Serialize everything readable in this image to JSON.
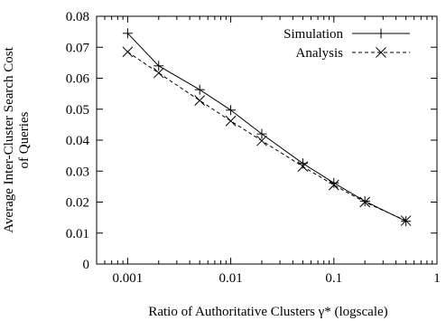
{
  "chart_data": {
    "type": "line",
    "xscale": "log",
    "xlabel": "Ratio of Authoritative Clusters γ* (logscale)",
    "ylabel_line1": "Average Inter-Cluster Search Cost",
    "ylabel_line2": "of Queries",
    "xlim": [
      0.0005,
      1
    ],
    "ylim": [
      0,
      0.08
    ],
    "x_ticks": [
      {
        "value": 0.001,
        "label": "0.001"
      },
      {
        "value": 0.01,
        "label": "0.01"
      },
      {
        "value": 0.1,
        "label": "0.1"
      },
      {
        "value": 1,
        "label": "1"
      }
    ],
    "y_ticks": [
      {
        "value": 0,
        "label": "0"
      },
      {
        "value": 0.01,
        "label": "0.01"
      },
      {
        "value": 0.02,
        "label": "0.02"
      },
      {
        "value": 0.03,
        "label": "0.03"
      },
      {
        "value": 0.04,
        "label": "0.04"
      },
      {
        "value": 0.05,
        "label": "0.05"
      },
      {
        "value": 0.06,
        "label": "0.06"
      },
      {
        "value": 0.07,
        "label": "0.07"
      },
      {
        "value": 0.08,
        "label": "0.08"
      }
    ],
    "legend_position": "top-right",
    "grid": false,
    "series": [
      {
        "name": "Simulation",
        "line": "solid",
        "marker": "plus",
        "points": [
          {
            "x": 0.001,
            "y": 0.0745
          },
          {
            "x": 0.002,
            "y": 0.064
          },
          {
            "x": 0.005,
            "y": 0.0563
          },
          {
            "x": 0.01,
            "y": 0.0497
          },
          {
            "x": 0.02,
            "y": 0.042
          },
          {
            "x": 0.05,
            "y": 0.0325
          },
          {
            "x": 0.1,
            "y": 0.0262
          },
          {
            "x": 0.2,
            "y": 0.0203
          },
          {
            "x": 0.5,
            "y": 0.0138
          }
        ]
      },
      {
        "name": "Analysis",
        "line": "dashed",
        "marker": "cross",
        "points": [
          {
            "x": 0.001,
            "y": 0.0685
          },
          {
            "x": 0.002,
            "y": 0.0617
          },
          {
            "x": 0.005,
            "y": 0.0528
          },
          {
            "x": 0.01,
            "y": 0.0462
          },
          {
            "x": 0.02,
            "y": 0.0398
          },
          {
            "x": 0.05,
            "y": 0.0315
          },
          {
            "x": 0.1,
            "y": 0.0255
          },
          {
            "x": 0.2,
            "y": 0.02
          },
          {
            "x": 0.5,
            "y": 0.014
          }
        ]
      }
    ]
  }
}
